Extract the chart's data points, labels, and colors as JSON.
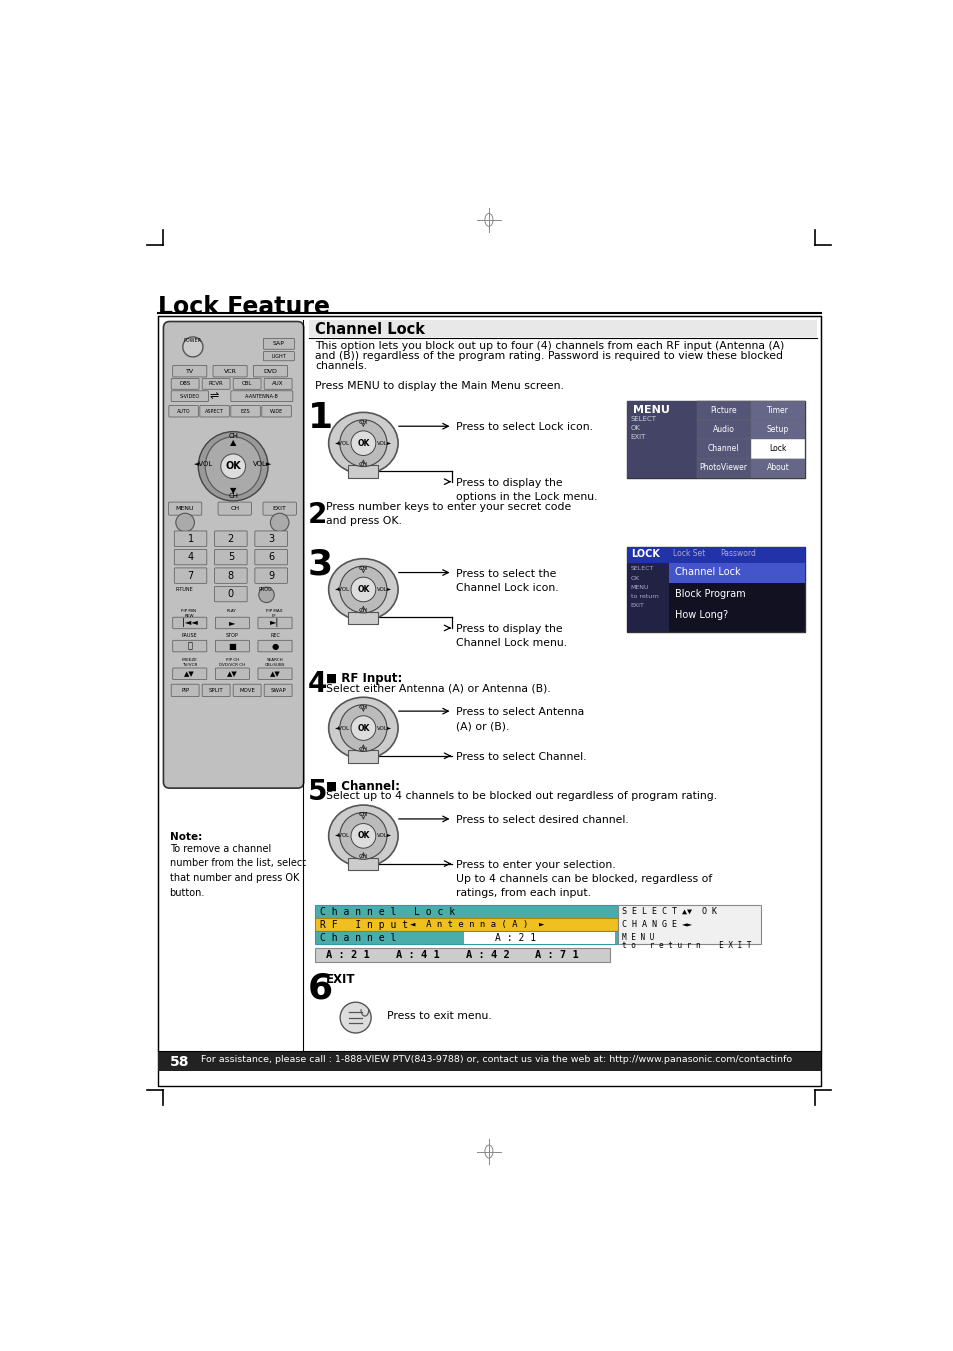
{
  "title": "Lock Feature",
  "page_number": "58",
  "footer_text": "For assistance, please call : 1-888-VIEW PTV(843-9788) or, contact us via the web at: http://www.panasonic.com/contactinfo",
  "section_title": "Channel Lock",
  "section_body_line1": "This option lets you block out up to four (4) channels from each RF input (Antenna (A)",
  "section_body_line2": "and (B)) regardless of the program rating. Password is required to view these blocked",
  "section_body_line3": "channels.",
  "section_body_line4": "Press MENU to display the Main Menu screen.",
  "note_title": "Note:",
  "note_body": "To remove a channel\nnumber from the list, select\nthat number and press OK\nbutton.",
  "step1_text1": "Press to select Lock icon.",
  "step1_text2": "Press to display the\noptions in the Lock menu.",
  "step2_text": "Press number keys to enter your secret code\nand press OK.",
  "step3_text1": "Press to select the\nChannel Lock icon.",
  "step3_text2": "Press to display the\nChannel Lock menu.",
  "step4_title": "■ RF Input:",
  "step4_text": "Select either Antenna (A) or Antenna (B).",
  "step4_text1": "Press to select Antenna\n(A) or (B).",
  "step4_text2": "Press to select Channel.",
  "step5_title": "■ Channel:",
  "step5_text": "Select up to 4 channels to be blocked out regardless of program rating.",
  "step5_text1": "Press to select desired channel.",
  "step5_text2": "Press to enter your selection.\nUp to 4 channels can be blocked, regardless of\nratings, from each input.",
  "step6_exit": "EXIT",
  "step6_text": "Press to exit menu.",
  "bg_color": "#ffffff",
  "remote_body_color": "#c0c0c0",
  "remote_btn_color": "#aaaaaa",
  "remote_dark_color": "#555555",
  "teal_color": "#4AADAC",
  "yellow_color": "#f0c020",
  "dark_screen_color": "#1a1a2e",
  "menu_bar_color": "#2244aa"
}
